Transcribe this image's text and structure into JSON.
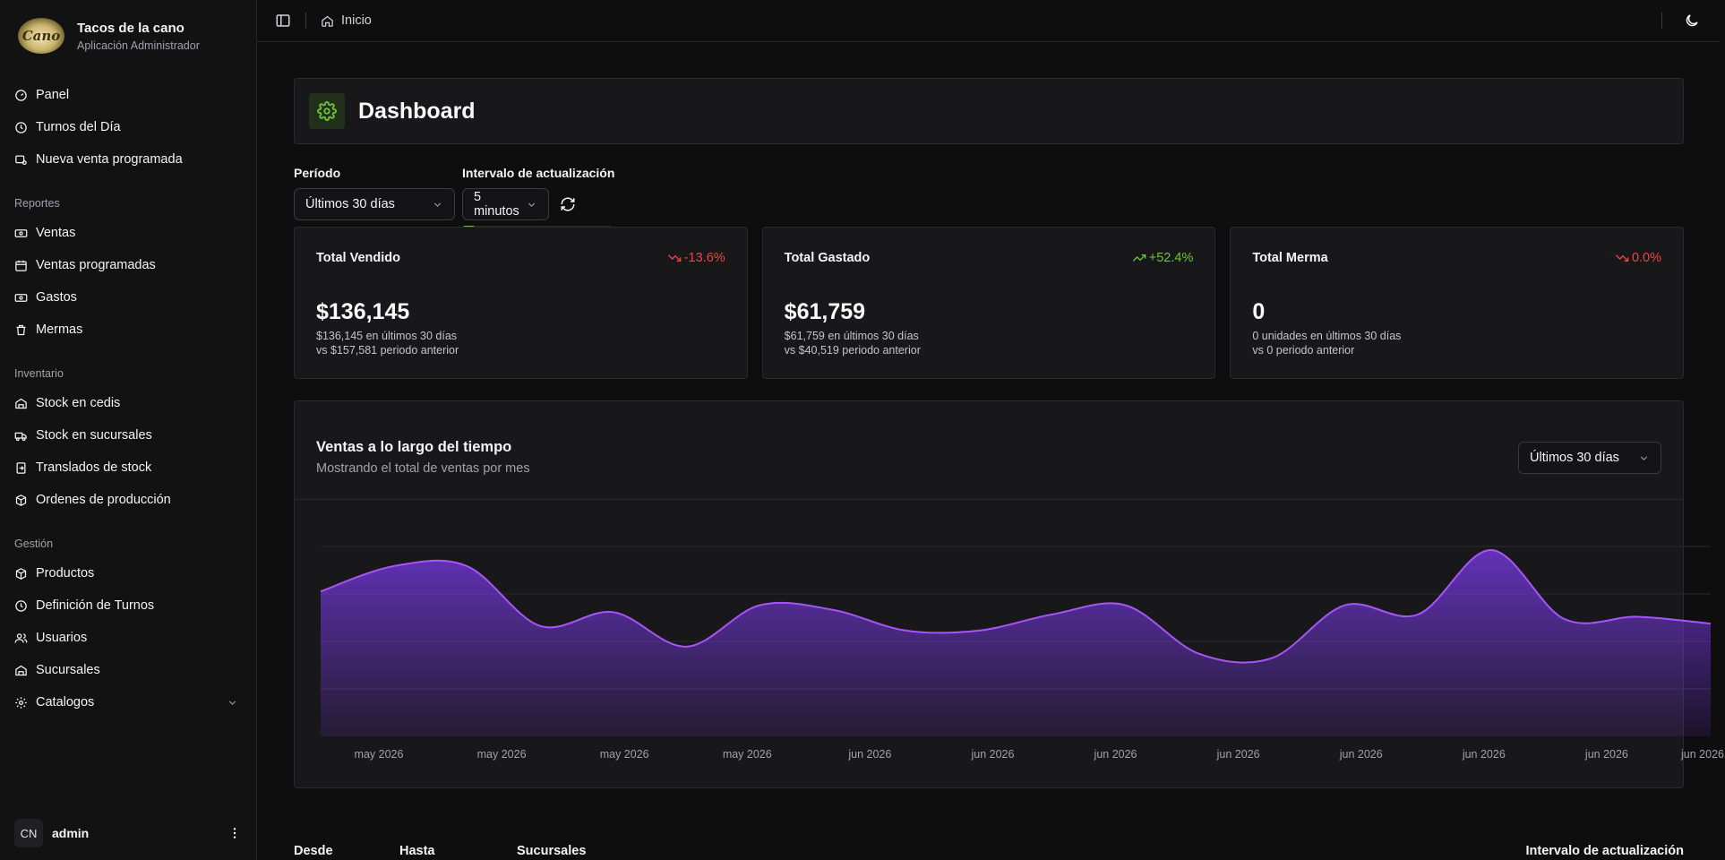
{
  "brand": {
    "name": "Tacos de la cano",
    "subtitle": "Aplicación Administrador",
    "logo_text": "Cano"
  },
  "sidebar": {
    "top_items": [
      {
        "label": "Panel",
        "icon": "gauge-icon"
      },
      {
        "label": "Turnos del Día",
        "icon": "clock-icon"
      },
      {
        "label": "Nueva venta programada",
        "icon": "calendar-cart-icon"
      }
    ],
    "sections": [
      {
        "title": "Reportes",
        "items": [
          {
            "label": "Ventas",
            "icon": "banknote-icon"
          },
          {
            "label": "Ventas programadas",
            "icon": "calendar-icon"
          },
          {
            "label": "Gastos",
            "icon": "banknote-icon"
          },
          {
            "label": "Mermas",
            "icon": "trash-icon"
          }
        ]
      },
      {
        "title": "Inventario",
        "items": [
          {
            "label": "Stock en cedis",
            "icon": "warehouse-icon"
          },
          {
            "label": "Stock en sucursales",
            "icon": "truck-icon"
          },
          {
            "label": "Translados de stock",
            "icon": "transfer-icon"
          },
          {
            "label": "Ordenes de producción",
            "icon": "box-icon"
          }
        ]
      },
      {
        "title": "Gestión",
        "items": [
          {
            "label": "Productos",
            "icon": "box-icon"
          },
          {
            "label": "Definición de Turnos",
            "icon": "clock-icon"
          },
          {
            "label": "Usuarios",
            "icon": "users-icon"
          },
          {
            "label": "Sucursales",
            "icon": "warehouse-icon"
          },
          {
            "label": "Catalogos",
            "icon": "gear-icon"
          }
        ]
      }
    ],
    "user": {
      "initials": "CN",
      "name": "admin"
    }
  },
  "topbar": {
    "breadcrumb": "Inicio"
  },
  "page": {
    "title": "Dashboard"
  },
  "filters": {
    "period_label": "Período",
    "period_value": "Últimos 30 días",
    "interval_label": "Intervalo de actualización",
    "interval_value": "5 minutos",
    "refresh_progress": 0.09
  },
  "stats": [
    {
      "title": "Total Vendido",
      "delta": "-13.6%",
      "trend": "down",
      "value": "$136,145",
      "line1": "$136,145 en últimos 30 días",
      "line2": "vs $157,581 periodo anterior"
    },
    {
      "title": "Total Gastado",
      "delta": "+52.4%",
      "trend": "up",
      "value": "$61,759",
      "line1": "$61,759 en últimos 30 días",
      "line2": "vs $40,519 periodo anterior"
    },
    {
      "title": "Total Merma",
      "delta": "0.0%",
      "trend": "down",
      "value": "0",
      "line1": "0 unidades en últimos 30 días",
      "line2": "vs 0 periodo anterior"
    }
  ],
  "chart_card": {
    "title": "Ventas a lo largo del tiempo",
    "subtitle": "Mostrando el total de ventas por mes",
    "range_value": "Últimos 30 días"
  },
  "chart_data": {
    "type": "area",
    "x_tick_labels": [
      "may 2026",
      "may 2026",
      "may 2026",
      "may 2026",
      "jun 2026",
      "jun 2026",
      "jun 2026",
      "jun 2026",
      "jun 2026",
      "jun 2026",
      "jun 2026",
      "jun 2026"
    ],
    "values": [
      6300,
      7400,
      7400,
      4800,
      5400,
      3900,
      5700,
      5500,
      4600,
      4600,
      5300,
      5700,
      3600,
      3400,
      5700,
      5300,
      8100,
      5100,
      5200,
      4900
    ],
    "ylim": [
      0,
      9500
    ],
    "grid": true,
    "color": "#a855f7"
  },
  "bottom_labels": {
    "from": "Desde",
    "to": "Hasta",
    "branches": "Sucursales",
    "interval": "Intervalo de actualización"
  }
}
